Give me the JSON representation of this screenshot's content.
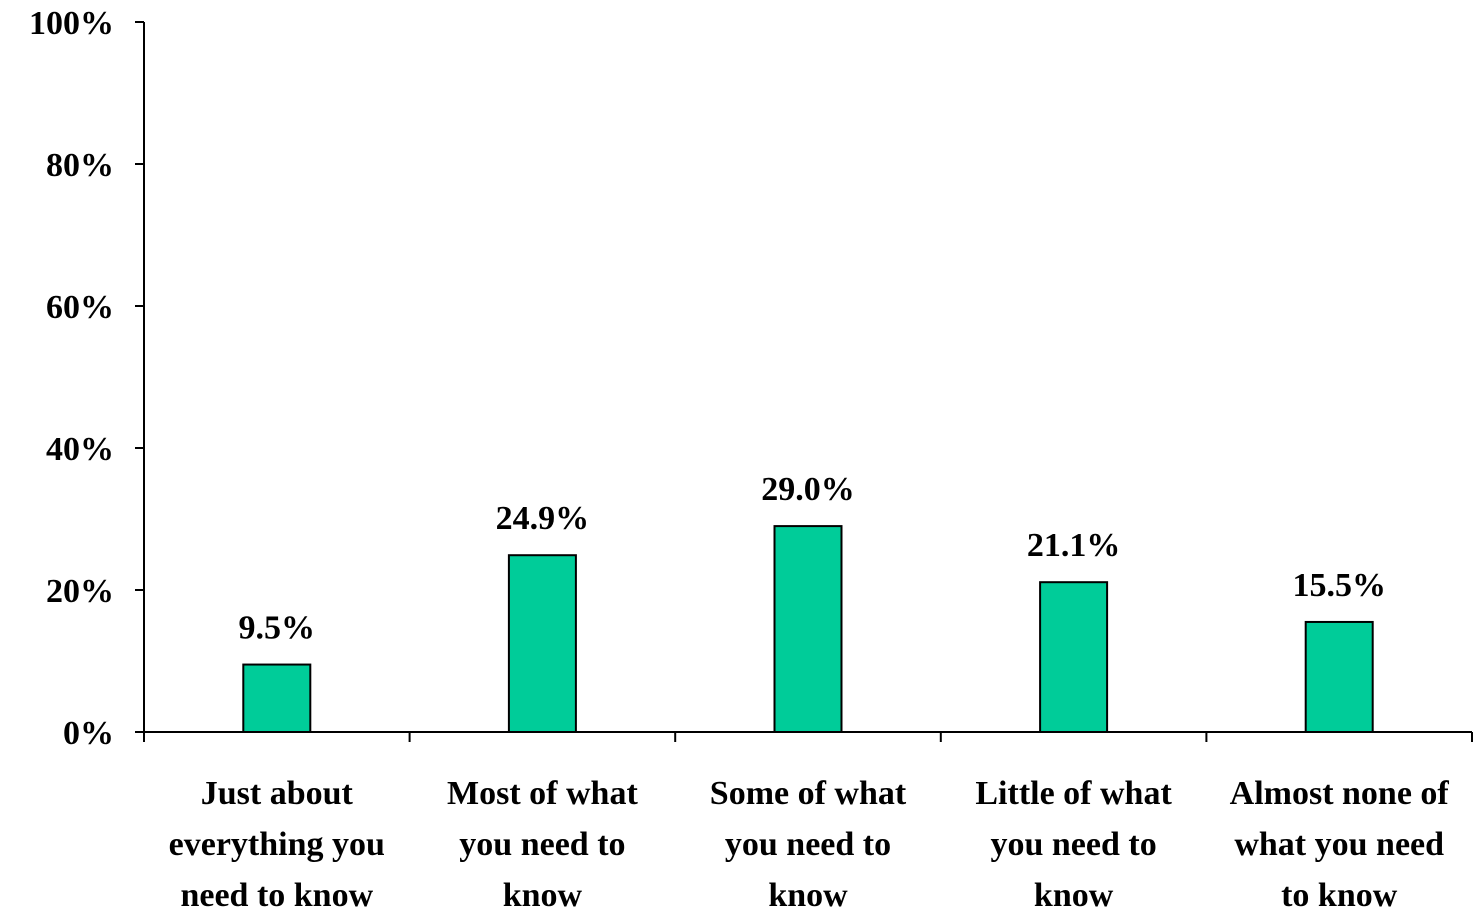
{
  "chart_data": {
    "type": "bar",
    "categories": [
      [
        "Just about",
        "everything you",
        "need to know"
      ],
      [
        "Most of what",
        "you need to",
        "know"
      ],
      [
        "Some of what",
        "you need to",
        "know"
      ],
      [
        "Little of what",
        "you need to",
        "know"
      ],
      [
        "Almost none of",
        "what you need",
        "to know"
      ]
    ],
    "values": [
      9.5,
      24.9,
      29.0,
      21.1,
      15.5
    ],
    "data_labels": [
      "9.5%",
      "24.9%",
      "29.0%",
      "21.1%",
      "15.5%"
    ],
    "yticks": [
      0,
      20,
      40,
      60,
      80,
      100
    ],
    "ytick_labels": [
      "0%",
      "20%",
      "40%",
      "60%",
      "80%",
      "100%"
    ],
    "ylim": [
      0,
      100
    ],
    "grid": false,
    "title": "",
    "xlabel": "",
    "ylabel": "",
    "bar_color": "#00CC99",
    "bar_edge_color": "#000000"
  }
}
